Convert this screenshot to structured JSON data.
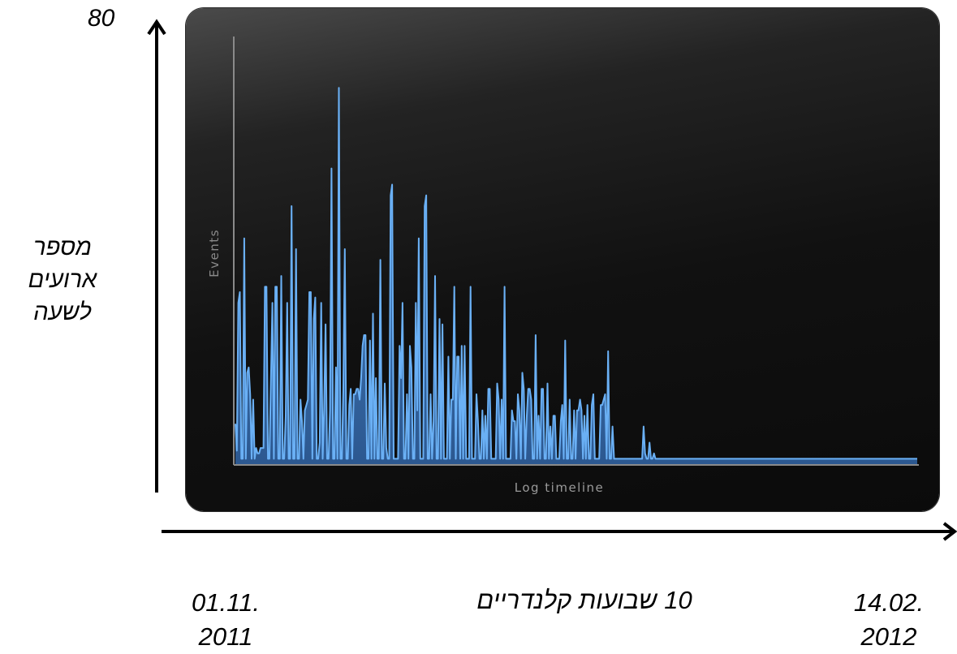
{
  "chart_data": {
    "type": "area",
    "title": "",
    "xlabel": "Log timeline",
    "ylabel": "Events",
    "ylim": [
      0,
      80
    ],
    "series": [
      {
        "values": [
          7.5,
          2.5,
          30,
          32,
          1,
          1,
          42,
          1,
          17,
          18,
          13,
          1,
          12,
          1,
          3,
          2,
          2,
          3,
          3,
          3,
          33,
          33,
          1,
          1,
          15,
          30,
          1,
          33,
          33,
          1,
          1,
          35,
          1,
          1,
          9,
          30,
          1,
          1,
          48,
          1,
          1,
          40,
          1,
          1,
          12,
          8,
          1,
          10,
          11,
          12,
          32,
          32,
          1,
          27,
          31,
          1,
          1,
          4,
          30,
          1,
          10,
          26,
          1,
          1,
          10,
          55,
          1,
          1,
          18,
          1,
          70,
          1,
          1,
          14,
          40,
          1,
          1,
          11,
          14,
          1,
          13,
          13,
          14,
          14,
          12,
          16,
          22,
          24,
          24,
          1,
          1,
          23,
          1,
          28,
          1,
          16,
          1,
          1,
          38,
          1,
          1,
          15,
          3,
          1,
          1,
          50,
          52,
          1,
          1,
          1,
          1,
          22,
          16,
          30,
          1,
          1,
          13,
          1,
          22,
          18,
          1,
          1,
          30,
          10,
          42,
          1,
          1,
          1,
          48,
          50,
          1,
          1,
          13,
          1,
          8,
          35,
          1,
          1,
          27,
          1,
          26,
          1,
          1,
          1,
          20,
          1,
          12,
          12,
          33,
          1,
          20,
          20,
          1,
          22,
          1,
          22,
          1,
          1,
          1,
          33,
          1,
          1,
          1,
          13,
          8,
          1,
          1,
          10,
          1,
          9,
          1,
          14,
          14,
          1,
          1,
          1,
          1,
          15,
          12,
          1,
          12,
          1,
          33,
          1,
          1,
          1,
          1,
          10,
          8,
          8,
          1,
          13,
          10,
          1,
          17,
          14,
          1,
          9,
          14,
          14,
          12,
          1,
          1,
          24,
          1,
          9,
          1,
          14,
          14,
          1,
          1,
          15,
          1,
          7,
          1,
          9,
          9,
          1,
          1,
          1,
          8,
          11,
          1,
          23,
          1,
          1,
          12,
          1,
          1,
          10,
          1,
          10,
          10,
          12,
          10,
          1,
          9,
          1,
          11,
          1,
          1,
          11,
          13,
          1,
          1,
          1,
          1,
          11,
          11,
          12,
          13,
          1,
          21,
          1,
          1,
          7,
          1,
          1,
          1,
          1,
          1,
          1,
          1,
          1,
          1,
          1,
          1,
          1,
          1,
          1,
          1,
          1,
          1,
          1,
          1,
          1,
          7,
          2,
          1,
          1,
          4,
          1,
          1,
          2,
          1,
          1,
          1,
          1,
          1,
          1,
          1,
          1,
          1,
          1,
          1,
          1,
          1,
          1,
          1,
          1,
          1,
          1,
          1,
          1,
          1,
          1,
          1,
          1,
          1,
          1,
          1,
          1,
          1,
          1,
          1,
          1,
          1,
          1,
          1,
          1,
          1,
          1,
          1,
          1,
          1,
          1,
          1,
          1,
          1,
          1,
          1,
          1,
          1,
          1,
          1,
          1,
          1,
          1,
          1,
          1,
          1,
          1,
          1,
          1,
          1,
          1,
          1,
          1,
          1,
          1,
          1,
          1,
          1,
          1,
          1,
          1,
          1,
          1,
          1,
          1,
          1,
          1,
          1,
          1,
          1,
          1,
          1,
          1,
          1,
          1,
          1,
          1,
          1,
          1,
          1,
          1,
          1,
          1,
          1,
          1,
          1,
          1,
          1,
          1,
          1,
          1,
          1,
          1,
          1,
          1,
          1,
          1,
          1,
          1,
          1,
          1,
          1,
          1,
          1,
          1,
          1,
          1,
          1,
          1,
          1,
          1,
          1,
          1,
          1,
          1,
          1,
          1,
          1,
          1,
          1,
          1,
          1,
          1,
          1,
          1,
          1,
          1,
          1,
          1,
          1,
          1,
          1,
          1,
          1,
          1,
          1,
          1,
          1,
          1,
          1,
          1,
          1,
          1,
          1,
          1,
          1,
          1,
          1,
          1,
          1,
          1,
          1,
          1,
          1,
          1,
          1,
          1,
          1,
          1,
          1,
          1,
          1,
          1,
          1,
          1,
          1,
          1
        ]
      }
    ],
    "colors": {
      "line": "#6ab0f5",
      "fill_top": "#4a86c8",
      "fill_bottom": "#2c5890",
      "axis": "#8a8a8a"
    }
  },
  "annotations": {
    "y_max": "80",
    "y_label_lines": [
      "מספר",
      "ארועים",
      "לשעה"
    ],
    "x_start": [
      "01.11.",
      "2011"
    ],
    "x_end": [
      "14.02.",
      "2012"
    ],
    "x_span": "10 שבועות קלנדריים"
  }
}
